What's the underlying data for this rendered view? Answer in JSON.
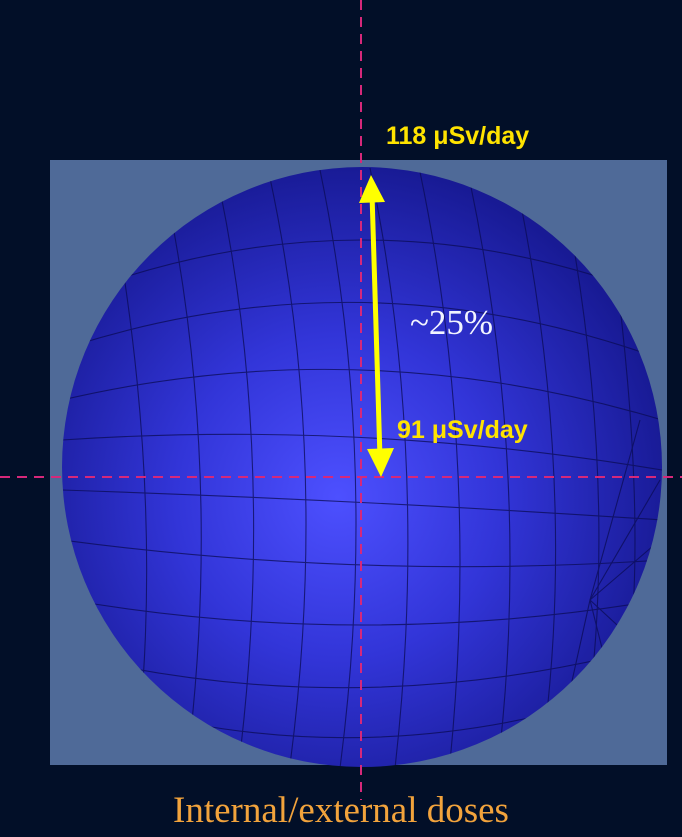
{
  "labels": {
    "top_dose": "118 μSv/day",
    "center_dose": "91 μSv/day",
    "difference": "~25%",
    "caption": "Internal/external doses"
  },
  "colors": {
    "background": "#020f28",
    "panel": "#4f6a98",
    "sphere_light": "#4a4cff",
    "sphere_dark": "#14168a",
    "arrow": "#ffff00",
    "crosshair": "#d6287a",
    "dose_text": "#ffe300",
    "caption_text": "#f2a33c"
  }
}
